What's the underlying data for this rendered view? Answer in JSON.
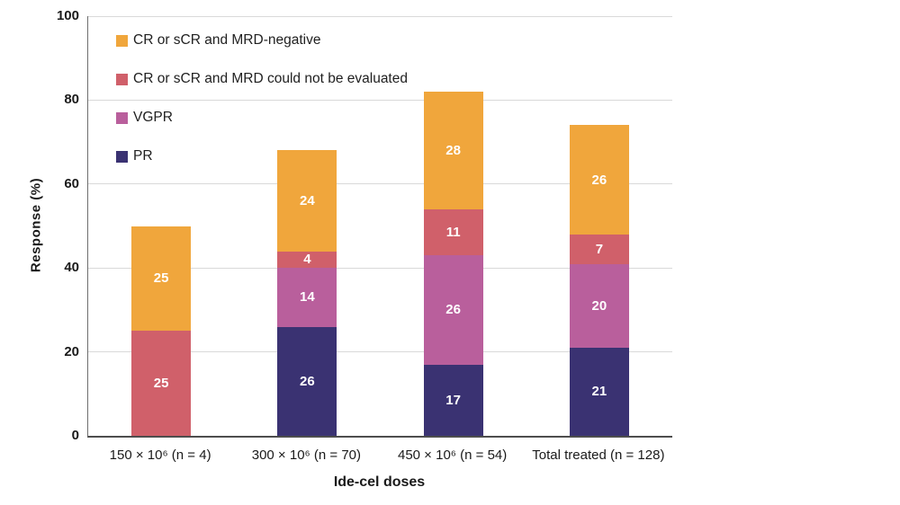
{
  "y_axis": {
    "title": "Response (%)",
    "tick_values": [
      0,
      20,
      40,
      60,
      80,
      100
    ]
  },
  "x_axis": {
    "title": "Ide-cel doses"
  },
  "legend": [
    {
      "label": "CR or sCR and MRD-negative",
      "color": "#F0A63C"
    },
    {
      "label": "CR or sCR and MRD could not be evaluated",
      "color": "#D0606A"
    },
    {
      "label": "VGPR",
      "color": "#B95F9C"
    },
    {
      "label": "PR",
      "color": "#3A3272"
    }
  ],
  "chart_data": {
    "type": "bar",
    "stacked": true,
    "title": "",
    "xlabel": "Ide-cel doses",
    "ylabel": "Response (%)",
    "ylim": [
      0,
      100
    ],
    "yticks": [
      0,
      20,
      40,
      60,
      80,
      100
    ],
    "grid": true,
    "legend_position": "upper-left-inside",
    "categories": [
      "150 × 10⁶ (n = 4)",
      "300 × 10⁶ (n = 70)",
      "450 × 10⁶ (n = 54)",
      "Total treated (n = 128)"
    ],
    "series": [
      {
        "name": "PR",
        "color": "#3A3272",
        "values": [
          0,
          26,
          17,
          21
        ]
      },
      {
        "name": "VGPR",
        "color": "#B95F9C",
        "values": [
          0,
          14,
          26,
          20
        ]
      },
      {
        "name": "CR or sCR and MRD could not be evaluated",
        "color": "#D0606A",
        "values": [
          25,
          4,
          11,
          7
        ]
      },
      {
        "name": "CR or sCR and MRD-negative",
        "color": "#F0A63C",
        "values": [
          25,
          24,
          28,
          26
        ]
      }
    ]
  }
}
